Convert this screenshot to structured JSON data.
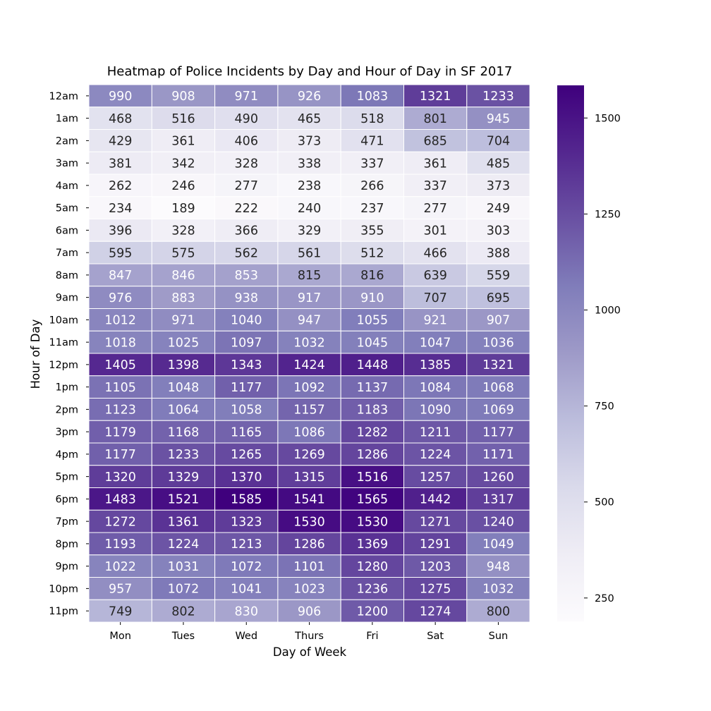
{
  "chart_data": {
    "type": "heatmap",
    "title": "Heatmap of Police Incidents by Day and Hour of Day in SF 2017",
    "xlabel": "Day of Week",
    "ylabel": "Hour of Day",
    "x_categories": [
      "Mon",
      "Tues",
      "Wed",
      "Thurs",
      "Fri",
      "Sat",
      "Sun"
    ],
    "y_categories": [
      "12am",
      "1am",
      "2am",
      "3am",
      "4am",
      "5am",
      "6am",
      "7am",
      "8am",
      "9am",
      "10am",
      "11am",
      "12pm",
      "1pm",
      "2pm",
      "3pm",
      "4pm",
      "5pm",
      "6pm",
      "7pm",
      "8pm",
      "9pm",
      "10pm",
      "11pm"
    ],
    "values": [
      [
        990,
        908,
        971,
        926,
        1083,
        1321,
        1233
      ],
      [
        468,
        516,
        490,
        465,
        518,
        801,
        945
      ],
      [
        429,
        361,
        406,
        373,
        471,
        685,
        704
      ],
      [
        381,
        342,
        328,
        338,
        337,
        361,
        485
      ],
      [
        262,
        246,
        277,
        238,
        266,
        337,
        373
      ],
      [
        234,
        189,
        222,
        240,
        237,
        277,
        249
      ],
      [
        396,
        328,
        366,
        329,
        355,
        301,
        303
      ],
      [
        595,
        575,
        562,
        561,
        512,
        466,
        388
      ],
      [
        847,
        846,
        853,
        815,
        816,
        639,
        559
      ],
      [
        976,
        883,
        938,
        917,
        910,
        707,
        695
      ],
      [
        1012,
        971,
        1040,
        947,
        1055,
        921,
        907
      ],
      [
        1018,
        1025,
        1097,
        1032,
        1045,
        1047,
        1036
      ],
      [
        1405,
        1398,
        1343,
        1424,
        1448,
        1385,
        1321
      ],
      [
        1105,
        1048,
        1177,
        1092,
        1137,
        1084,
        1068
      ],
      [
        1123,
        1064,
        1058,
        1157,
        1183,
        1090,
        1069
      ],
      [
        1179,
        1168,
        1165,
        1086,
        1282,
        1211,
        1177
      ],
      [
        1177,
        1233,
        1265,
        1269,
        1286,
        1224,
        1171
      ],
      [
        1320,
        1329,
        1370,
        1315,
        1516,
        1257,
        1260
      ],
      [
        1483,
        1521,
        1585,
        1541,
        1565,
        1442,
        1317
      ],
      [
        1272,
        1361,
        1323,
        1530,
        1530,
        1271,
        1240
      ],
      [
        1193,
        1224,
        1213,
        1286,
        1369,
        1291,
        1049
      ],
      [
        1022,
        1031,
        1072,
        1101,
        1280,
        1203,
        948
      ],
      [
        957,
        1072,
        1041,
        1023,
        1236,
        1275,
        1032
      ],
      [
        749,
        802,
        830,
        906,
        1200,
        1274,
        800
      ]
    ],
    "colormap": "Purples",
    "colormap_stops": [
      "#fcfbfd",
      "#efedf5",
      "#dadaeb",
      "#bcbddc",
      "#9e9ac8",
      "#807dba",
      "#6a51a3",
      "#54278f",
      "#3f007d"
    ],
    "color_range": [
      189,
      1585
    ],
    "colorbar_ticks": [
      250,
      500,
      750,
      1000,
      1250,
      1500
    ],
    "colorbar_tick_labels": [
      "250",
      "500",
      "750",
      "1000",
      "1250",
      "1500"
    ],
    "annotated": true,
    "grid": false,
    "cell_border_color": "#ffffff"
  }
}
